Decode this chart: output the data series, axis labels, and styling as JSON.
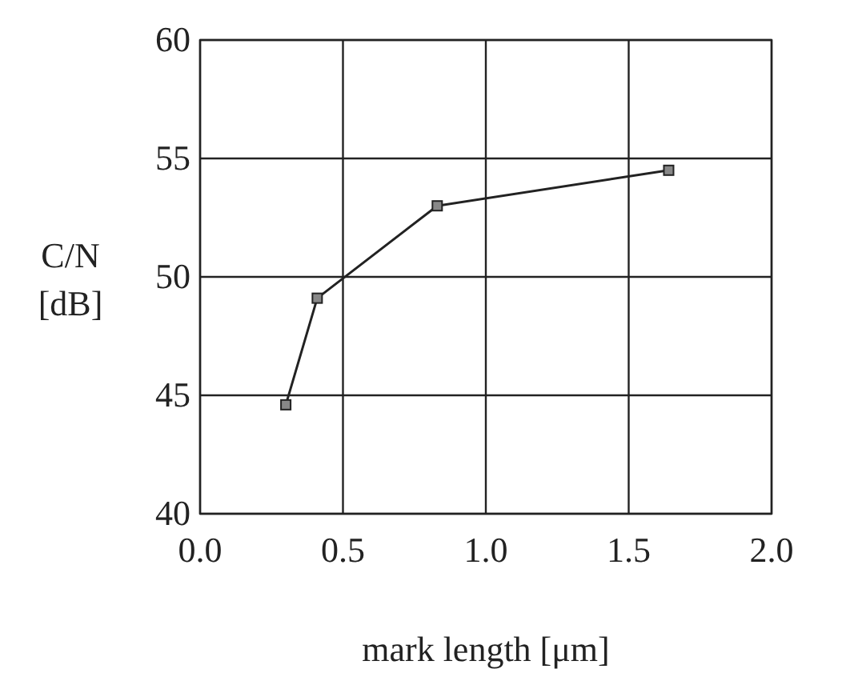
{
  "chart_data": {
    "type": "line",
    "xlabel": "mark length [μm]",
    "ylabel": "C/N [dB]",
    "x": [
      0.3,
      0.41,
      0.83,
      1.64
    ],
    "series": [
      {
        "color": "#222222",
        "values": [
          44.6,
          49.1,
          53.0,
          54.5
        ]
      }
    ],
    "xlim": [
      0,
      2
    ],
    "xticks": [
      {
        "value": 0,
        "label": "0.0"
      },
      {
        "value": 0.5,
        "label": "0.5"
      },
      {
        "value": 1,
        "label": "1.0"
      },
      {
        "value": 1.5,
        "label": "1.5"
      },
      {
        "value": 2,
        "label": "2.0"
      }
    ],
    "ylim": [
      40,
      60
    ],
    "yticks": [
      40,
      45,
      50,
      55,
      60
    ],
    "grid": true,
    "marker": "square",
    "line_style": "solid"
  }
}
